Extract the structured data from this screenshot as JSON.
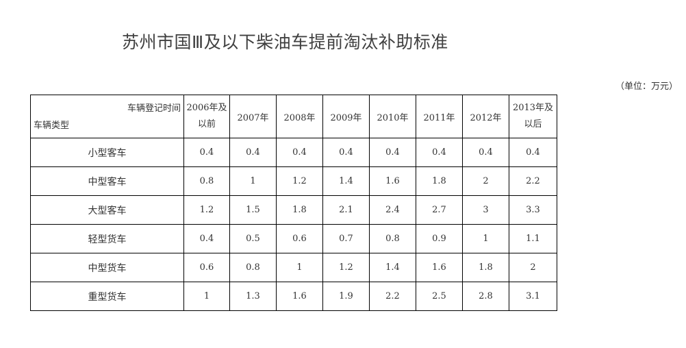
{
  "title": "苏州市国Ⅲ及以下柴油车提前淘汰补助标准",
  "unit": "（单位：万元）",
  "table": {
    "corner_top": "车辆登记时间",
    "corner_bottom": "车辆类型",
    "columns": [
      {
        "line1": "2006年及",
        "line2": "以前"
      },
      {
        "line1": "2007年",
        "line2": ""
      },
      {
        "line1": "2008年",
        "line2": ""
      },
      {
        "line1": "2009年",
        "line2": ""
      },
      {
        "line1": "2010年",
        "line2": ""
      },
      {
        "line1": "2011年",
        "line2": ""
      },
      {
        "line1": "2012年",
        "line2": ""
      },
      {
        "line1": "2013年及",
        "line2": "以后"
      }
    ],
    "rows": [
      {
        "type": "小型客车",
        "values": [
          "0.4",
          "0.4",
          "0.4",
          "0.4",
          "0.4",
          "0.4",
          "0.4",
          "0.4"
        ]
      },
      {
        "type": "中型客车",
        "values": [
          "0.8",
          "1",
          "1.2",
          "1.4",
          "1.6",
          "1.8",
          "2",
          "2.2"
        ]
      },
      {
        "type": "大型客车",
        "values": [
          "1.2",
          "1.5",
          "1.8",
          "2.1",
          "2.4",
          "2.7",
          "3",
          "3.3"
        ]
      },
      {
        "type": "轻型货车",
        "values": [
          "0.4",
          "0.5",
          "0.6",
          "0.7",
          "0.8",
          "0.9",
          "1",
          "1.1"
        ]
      },
      {
        "type": "中型货车",
        "values": [
          "0.6",
          "0.8",
          "1",
          "1.2",
          "1.4",
          "1.6",
          "1.8",
          "2"
        ]
      },
      {
        "type": "重型货车",
        "values": [
          "1",
          "1.3",
          "1.6",
          "1.9",
          "2.2",
          "2.5",
          "2.8",
          "3.1"
        ]
      }
    ]
  }
}
